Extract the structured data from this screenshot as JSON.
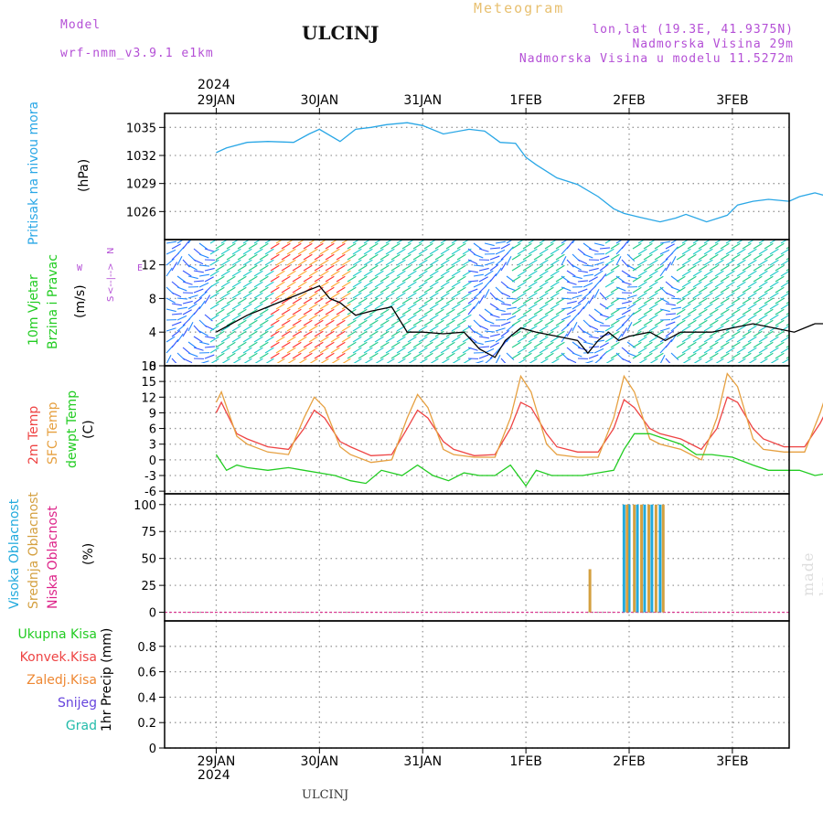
{
  "header": {
    "model_label": "Model",
    "model_name": "wrf-nmm_v3.9.1  e1km",
    "station": "ULCINJ",
    "meteogram": "Meteogram",
    "coords": "lon,lat (19.3E, 41.9375N)",
    "elevation": "Nadmorska Visina 29m",
    "model_elevation": "Nadmorska Visina u modelu 11.5272m",
    "year_top": "2024",
    "year_bottom": "2024",
    "footer_station": "ULCINJ",
    "signature": "made by Angel"
  },
  "colors": {
    "pressure": "#2aa7e6",
    "t2m": "#ee4444",
    "sfc": "#e6a040",
    "dewpt": "#22cc22",
    "high_cloud": "#22aadd",
    "mid_cloud": "#d4a040",
    "low_cloud": "#dd2288",
    "wind_speed": "#000000",
    "ukupna": "#22cc22",
    "konvek": "#ee4444",
    "zaledj": "#ee8833",
    "snijeg": "#6644dd",
    "grad": "#22bbaa"
  },
  "panel_labels": {
    "pressure": [
      "Pritisak na nivou mora"
    ],
    "pressure_unit": "(hPa)",
    "wind": [
      "10m Vjetar",
      "Brzina i Pravac"
    ],
    "wind_unit": "(m/s)",
    "wind_compass": [
      "N",
      "<--|-->",
      "S",
      "W",
      "E"
    ],
    "temp": [
      "2m Temp",
      "SFC Temp",
      "dewpt Temp"
    ],
    "temp_unit": "(C)",
    "cloud": [
      "Visoka Oblacnost",
      "Srednja Oblacnost",
      "Niska Oblacnost"
    ],
    "cloud_unit": "(%)",
    "precip_unit": "1hr Precip (mm)",
    "precip_legend": [
      "Ukupna Kisa",
      "Konvek.Kisa",
      "Zaledj.Kisa",
      "Snijeg",
      "Grad"
    ]
  },
  "chart_data": [
    {
      "type": "line",
      "panel": "pressure",
      "x_ticks": [
        "29JAN",
        "30JAN",
        "31JAN",
        "1FEB",
        "2FEB",
        "3FEB"
      ],
      "xlim": [
        0,
        6
      ],
      "ylim": [
        1023,
        1036.5
      ],
      "y_ticks": [
        1026,
        1029,
        1032,
        1035
      ],
      "grid": true,
      "series": [
        {
          "color_key": "pressure",
          "x": [
            0,
            0.1,
            0.3,
            0.5,
            0.75,
            0.9,
            1.0,
            1.2,
            1.35,
            1.5,
            1.65,
            1.85,
            2.0,
            2.2,
            2.45,
            2.6,
            2.75,
            2.9,
            3.0,
            3.1,
            3.3,
            3.5,
            3.7,
            3.85,
            3.95,
            4.1,
            4.3,
            4.45,
            4.55,
            4.75,
            4.95,
            5.05,
            5.2,
            5.35,
            5.55,
            5.65,
            5.8,
            5.9,
            6.0,
            6.1
          ],
          "y": [
            1032.3,
            1032.8,
            1033.4,
            1033.5,
            1033.4,
            1034.3,
            1034.8,
            1033.5,
            1034.8,
            1035.0,
            1035.3,
            1035.5,
            1035.2,
            1034.3,
            1034.8,
            1034.6,
            1033.4,
            1033.3,
            1031.8,
            1031.0,
            1029.6,
            1028.9,
            1027.6,
            1026.3,
            1025.8,
            1025.4,
            1024.9,
            1025.3,
            1025.7,
            1024.9,
            1025.6,
            1026.7,
            1027.1,
            1027.3,
            1027.1,
            1027.6,
            1028.0,
            1027.7,
            1027.2,
            1026.8
          ]
        }
      ]
    },
    {
      "type": "line",
      "panel": "wind",
      "x_ticks": [
        "29JAN",
        "30JAN",
        "31JAN",
        "1FEB",
        "2FEB",
        "3FEB"
      ],
      "xlim": [
        0,
        6
      ],
      "ylim": [
        0,
        15
      ],
      "y_ticks": [
        0,
        4,
        8,
        12
      ],
      "grid": true,
      "series": [
        {
          "color_key": "wind_speed",
          "x": [
            0,
            0.15,
            0.3,
            0.5,
            0.7,
            0.9,
            1.0,
            1.1,
            1.2,
            1.35,
            1.5,
            1.7,
            1.85,
            2.0,
            2.2,
            2.4,
            2.55,
            2.7,
            2.8,
            2.95,
            3.1,
            3.3,
            3.5,
            3.6,
            3.7,
            3.8,
            3.9,
            4.0,
            4.2,
            4.35,
            4.5,
            4.6,
            4.8,
            5.0,
            5.2,
            5.4,
            5.6,
            5.8,
            6.0,
            6.1
          ],
          "y": [
            4,
            5,
            6,
            7,
            8,
            9,
            9.5,
            8,
            7.5,
            6,
            6.5,
            7,
            4,
            4,
            3.8,
            4,
            2,
            1,
            3,
            4.5,
            4,
            3.5,
            3,
            1.5,
            3,
            4,
            3,
            3.5,
            4,
            3,
            4,
            4,
            4,
            4.5,
            5,
            4.5,
            4,
            5,
            5,
            2
          ]
        }
      ],
      "barbs": "wind direction arrows/barbs along the full period, colored by speed (red/orange strong, green/teal moderate, blue/purple weak)"
    },
    {
      "type": "line",
      "panel": "temperature",
      "x_ticks": [
        "29JAN",
        "30JAN",
        "31JAN",
        "1FEB",
        "2FEB",
        "3FEB"
      ],
      "xlim": [
        0,
        6
      ],
      "ylim": [
        -6.5,
        18
      ],
      "y_ticks": [
        -6,
        -3,
        0,
        3,
        6,
        9,
        12,
        15,
        18
      ],
      "grid": true,
      "series": [
        {
          "name": "2m Temp",
          "color_key": "t2m",
          "x": [
            0,
            0.05,
            0.2,
            0.3,
            0.5,
            0.7,
            0.85,
            0.95,
            1.05,
            1.2,
            1.3,
            1.5,
            1.7,
            1.85,
            1.95,
            2.05,
            2.2,
            2.3,
            2.5,
            2.7,
            2.85,
            2.95,
            3.05,
            3.2,
            3.3,
            3.5,
            3.7,
            3.85,
            3.95,
            4.05,
            4.2,
            4.3,
            4.5,
            4.7,
            4.85,
            4.95,
            5.05,
            5.2,
            5.3,
            5.5,
            5.7,
            5.85,
            5.95,
            6.05,
            6.1
          ],
          "y": [
            9,
            11,
            5,
            4,
            2.5,
            2,
            6,
            9.5,
            8,
            3.5,
            2.5,
            0.8,
            1,
            6,
            9.5,
            8,
            3.5,
            2,
            0.8,
            1,
            6,
            11,
            10,
            5,
            2.5,
            1.5,
            1.5,
            6,
            11.5,
            10,
            6,
            5,
            4,
            2,
            6,
            12,
            11,
            6,
            4,
            2.5,
            2.5,
            7,
            11,
            12.5,
            12.5
          ]
        },
        {
          "name": "SFC Temp",
          "color_key": "sfc",
          "x": [
            0,
            0.05,
            0.2,
            0.3,
            0.5,
            0.7,
            0.85,
            0.95,
            1.05,
            1.2,
            1.3,
            1.5,
            1.7,
            1.85,
            1.95,
            2.05,
            2.2,
            2.3,
            2.5,
            2.7,
            2.85,
            2.95,
            3.05,
            3.2,
            3.3,
            3.5,
            3.7,
            3.85,
            3.95,
            4.05,
            4.2,
            4.3,
            4.5,
            4.7,
            4.85,
            4.95,
            5.05,
            5.2,
            5.3,
            5.5,
            5.7,
            5.85,
            5.95,
            6.05,
            6.1
          ],
          "y": [
            11,
            13,
            4.5,
            3,
            1.5,
            1,
            8,
            12,
            10,
            2.5,
            1,
            -0.5,
            0,
            8,
            12.5,
            10,
            2,
            1,
            0.5,
            0.5,
            8,
            16,
            13,
            3,
            1,
            0.5,
            0.5,
            8,
            16,
            13,
            4,
            3,
            2,
            0,
            8,
            16.5,
            14,
            4,
            2,
            1.5,
            1.5,
            9,
            15,
            17.5,
            17.5
          ]
        },
        {
          "name": "dewpt Temp",
          "color_key": "dewpt",
          "x": [
            0,
            0.1,
            0.2,
            0.3,
            0.5,
            0.7,
            0.85,
            1.0,
            1.15,
            1.3,
            1.45,
            1.6,
            1.8,
            1.95,
            2.1,
            2.25,
            2.4,
            2.55,
            2.7,
            2.85,
            3.0,
            3.1,
            3.25,
            3.4,
            3.55,
            3.7,
            3.85,
            3.95,
            4.05,
            4.2,
            4.35,
            4.5,
            4.65,
            4.8,
            5.0,
            5.2,
            5.35,
            5.5,
            5.65,
            5.8,
            5.95,
            6.1
          ],
          "y": [
            1,
            -2,
            -1,
            -1.5,
            -2,
            -1.5,
            -2,
            -2.5,
            -3,
            -4,
            -4.5,
            -2,
            -3,
            -1,
            -3,
            -4,
            -2.5,
            -3,
            -3,
            -1,
            -5,
            -2,
            -3,
            -3,
            -3,
            -2.5,
            -2,
            2,
            5,
            5,
            4,
            3,
            1,
            1,
            0.5,
            -1,
            -2,
            -2,
            -2,
            -3,
            -2.5,
            3
          ]
        }
      ]
    },
    {
      "type": "bar",
      "panel": "cloud",
      "x_ticks": [
        "29JAN",
        "30JAN",
        "31JAN",
        "1FEB",
        "2FEB",
        "3FEB"
      ],
      "xlim": [
        0,
        6
      ],
      "ylim": [
        -8,
        110
      ],
      "y_ticks": [
        0,
        25,
        50,
        75,
        100
      ],
      "grid": true,
      "series": [
        {
          "name": "Visoka Oblacnost",
          "color_key": "high_cloud",
          "x": [
            3.95,
            4.0,
            4.08,
            4.15,
            4.22,
            4.3
          ],
          "values": [
            100,
            100,
            100,
            100,
            100,
            100
          ]
        },
        {
          "name": "Srednja Oblacnost",
          "color_key": "mid_cloud",
          "x": [
            3.62,
            3.98,
            4.05,
            4.12,
            4.19,
            4.26,
            4.33
          ],
          "values": [
            40,
            100,
            100,
            100,
            100,
            100,
            100
          ]
        },
        {
          "name": "Niska Oblacnost",
          "color_key": "low_cloud",
          "x": [],
          "values": []
        }
      ]
    },
    {
      "type": "bar",
      "panel": "precip",
      "x_ticks": [
        "29JAN",
        "30JAN",
        "31JAN",
        "1FEB",
        "2FEB",
        "3FEB"
      ],
      "xlim": [
        0,
        6
      ],
      "ylim": [
        0,
        1
      ],
      "y_ticks": [
        "0",
        "0.2",
        "0.4",
        "0.6",
        "0.8"
      ],
      "grid": true,
      "series": []
    }
  ]
}
